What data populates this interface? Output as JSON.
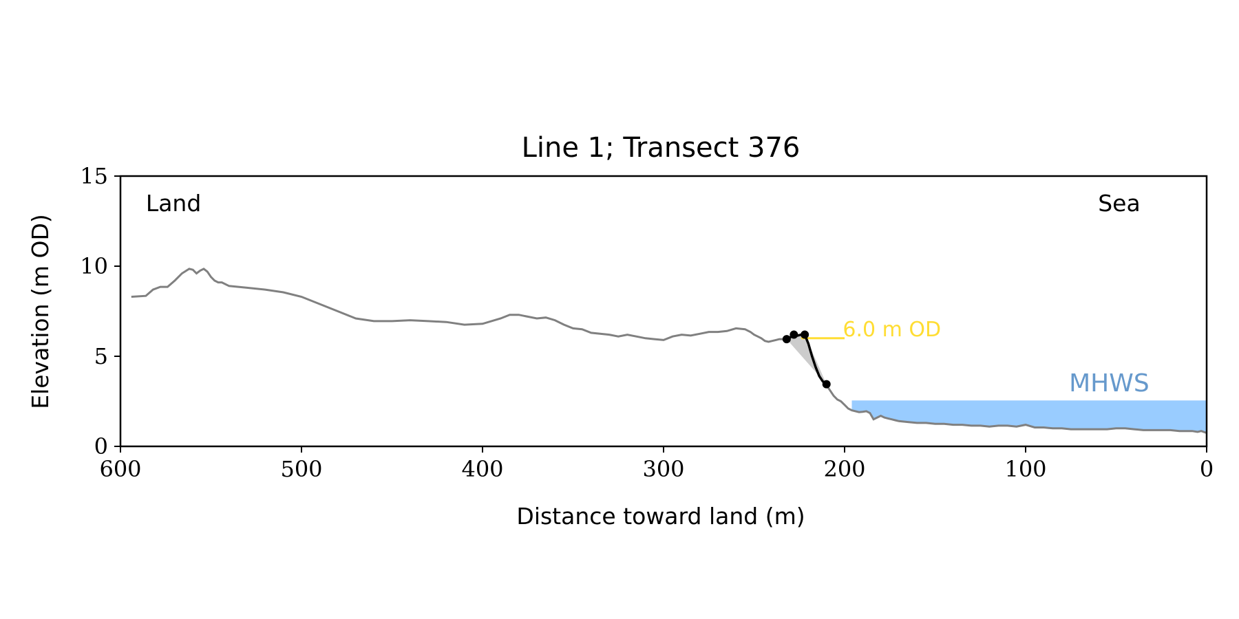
{
  "chart_data": {
    "type": "line",
    "title": "Line 1; Transect 376",
    "xlabel": "Distance toward land (m)",
    "ylabel": "Elevation (m OD)",
    "xlim": [
      600,
      0
    ],
    "ylim": [
      0,
      15
    ],
    "x_ticks": [
      600,
      500,
      400,
      300,
      200,
      100,
      0
    ],
    "y_ticks": [
      0,
      5,
      10,
      15
    ],
    "grid": false,
    "annotations": {
      "land": "Land",
      "sea": "Sea",
      "mhws_label": "MHWS",
      "od_label": "6.0 m OD"
    },
    "mhws": {
      "x_from": 196,
      "x_to": 0,
      "level": 2.55
    },
    "od_line": {
      "level": 6.0,
      "x_from": 224,
      "x_to": 200
    },
    "colors": {
      "profile": "#808080",
      "cliff": "#000000",
      "mhws_fill": "#99ccff",
      "mhws_text": "#6699cc",
      "od": "#ffdd33",
      "shade": "#cccccc"
    },
    "series": [
      {
        "name": "",
        "x": [
          594,
          586,
          582,
          578,
          574,
          570,
          566,
          562,
          560,
          558,
          556,
          554,
          552,
          550,
          548,
          546,
          544,
          540,
          530,
          520,
          510,
          500,
          490,
          480,
          470,
          460,
          450,
          440,
          430,
          420,
          410,
          400,
          390,
          385,
          380,
          375,
          370,
          365,
          360,
          355,
          350,
          345,
          340,
          335,
          330,
          325,
          320,
          315,
          310,
          305,
          300,
          295,
          290,
          285,
          280,
          275,
          270,
          265,
          260,
          255,
          252,
          250,
          248,
          246,
          244,
          242,
          240,
          238,
          236,
          234,
          232
        ],
        "values": [
          8.3,
          8.35,
          8.7,
          8.85,
          8.85,
          9.2,
          9.6,
          9.85,
          9.8,
          9.6,
          9.75,
          9.85,
          9.7,
          9.4,
          9.2,
          9.1,
          9.1,
          8.9,
          8.8,
          8.7,
          8.55,
          8.3,
          7.9,
          7.5,
          7.1,
          6.95,
          6.95,
          7.0,
          6.95,
          6.9,
          6.75,
          6.8,
          7.1,
          7.3,
          7.3,
          7.2,
          7.1,
          7.15,
          7.0,
          6.75,
          6.55,
          6.5,
          6.3,
          6.25,
          6.2,
          6.1,
          6.2,
          6.1,
          6.0,
          5.95,
          5.9,
          6.1,
          6.2,
          6.15,
          6.25,
          6.35,
          6.35,
          6.4,
          6.55,
          6.5,
          6.35,
          6.2,
          6.1,
          6.0,
          5.85,
          5.8,
          5.85,
          5.9,
          5.95,
          5.95,
          5.95
        ]
      },
      {
        "name": "",
        "x": [
          210,
          208,
          206,
          204,
          202,
          200,
          198,
          196,
          194,
          192,
          190,
          188,
          186,
          184,
          182,
          180,
          178,
          176,
          174,
          172,
          170,
          165,
          160,
          155,
          150,
          145,
          140,
          135,
          130,
          125,
          120,
          115,
          110,
          105,
          100,
          95,
          90,
          85,
          80,
          75,
          70,
          65,
          60,
          55,
          50,
          45,
          40,
          35,
          30,
          25,
          20,
          15,
          10,
          8,
          5,
          3,
          0
        ],
        "values": [
          3.4,
          3.1,
          2.8,
          2.6,
          2.5,
          2.3,
          2.1,
          2.0,
          1.95,
          1.9,
          1.92,
          1.95,
          1.85,
          1.5,
          1.6,
          1.7,
          1.6,
          1.55,
          1.5,
          1.45,
          1.4,
          1.35,
          1.3,
          1.3,
          1.25,
          1.25,
          1.2,
          1.2,
          1.15,
          1.15,
          1.1,
          1.15,
          1.15,
          1.1,
          1.2,
          1.05,
          1.05,
          1.0,
          1.0,
          0.95,
          0.95,
          0.95,
          0.95,
          0.95,
          1.0,
          1.0,
          0.95,
          0.9,
          0.9,
          0.9,
          0.9,
          0.85,
          0.85,
          0.85,
          0.8,
          0.85,
          0.75
        ]
      },
      {
        "name": "",
        "x": [
          232,
          230,
          228,
          226,
          224,
          222,
          220,
          218,
          216,
          214,
          212,
          210
        ],
        "values": [
          5.95,
          6.05,
          6.2,
          6.15,
          6.2,
          6.2,
          5.7,
          5.0,
          4.4,
          3.9,
          3.6,
          3.45
        ]
      }
    ],
    "cliff_points": [
      {
        "x": 232,
        "y": 5.95
      },
      {
        "x": 228,
        "y": 6.2
      },
      {
        "x": 222,
        "y": 6.2
      },
      {
        "x": 210,
        "y": 3.45
      }
    ]
  }
}
